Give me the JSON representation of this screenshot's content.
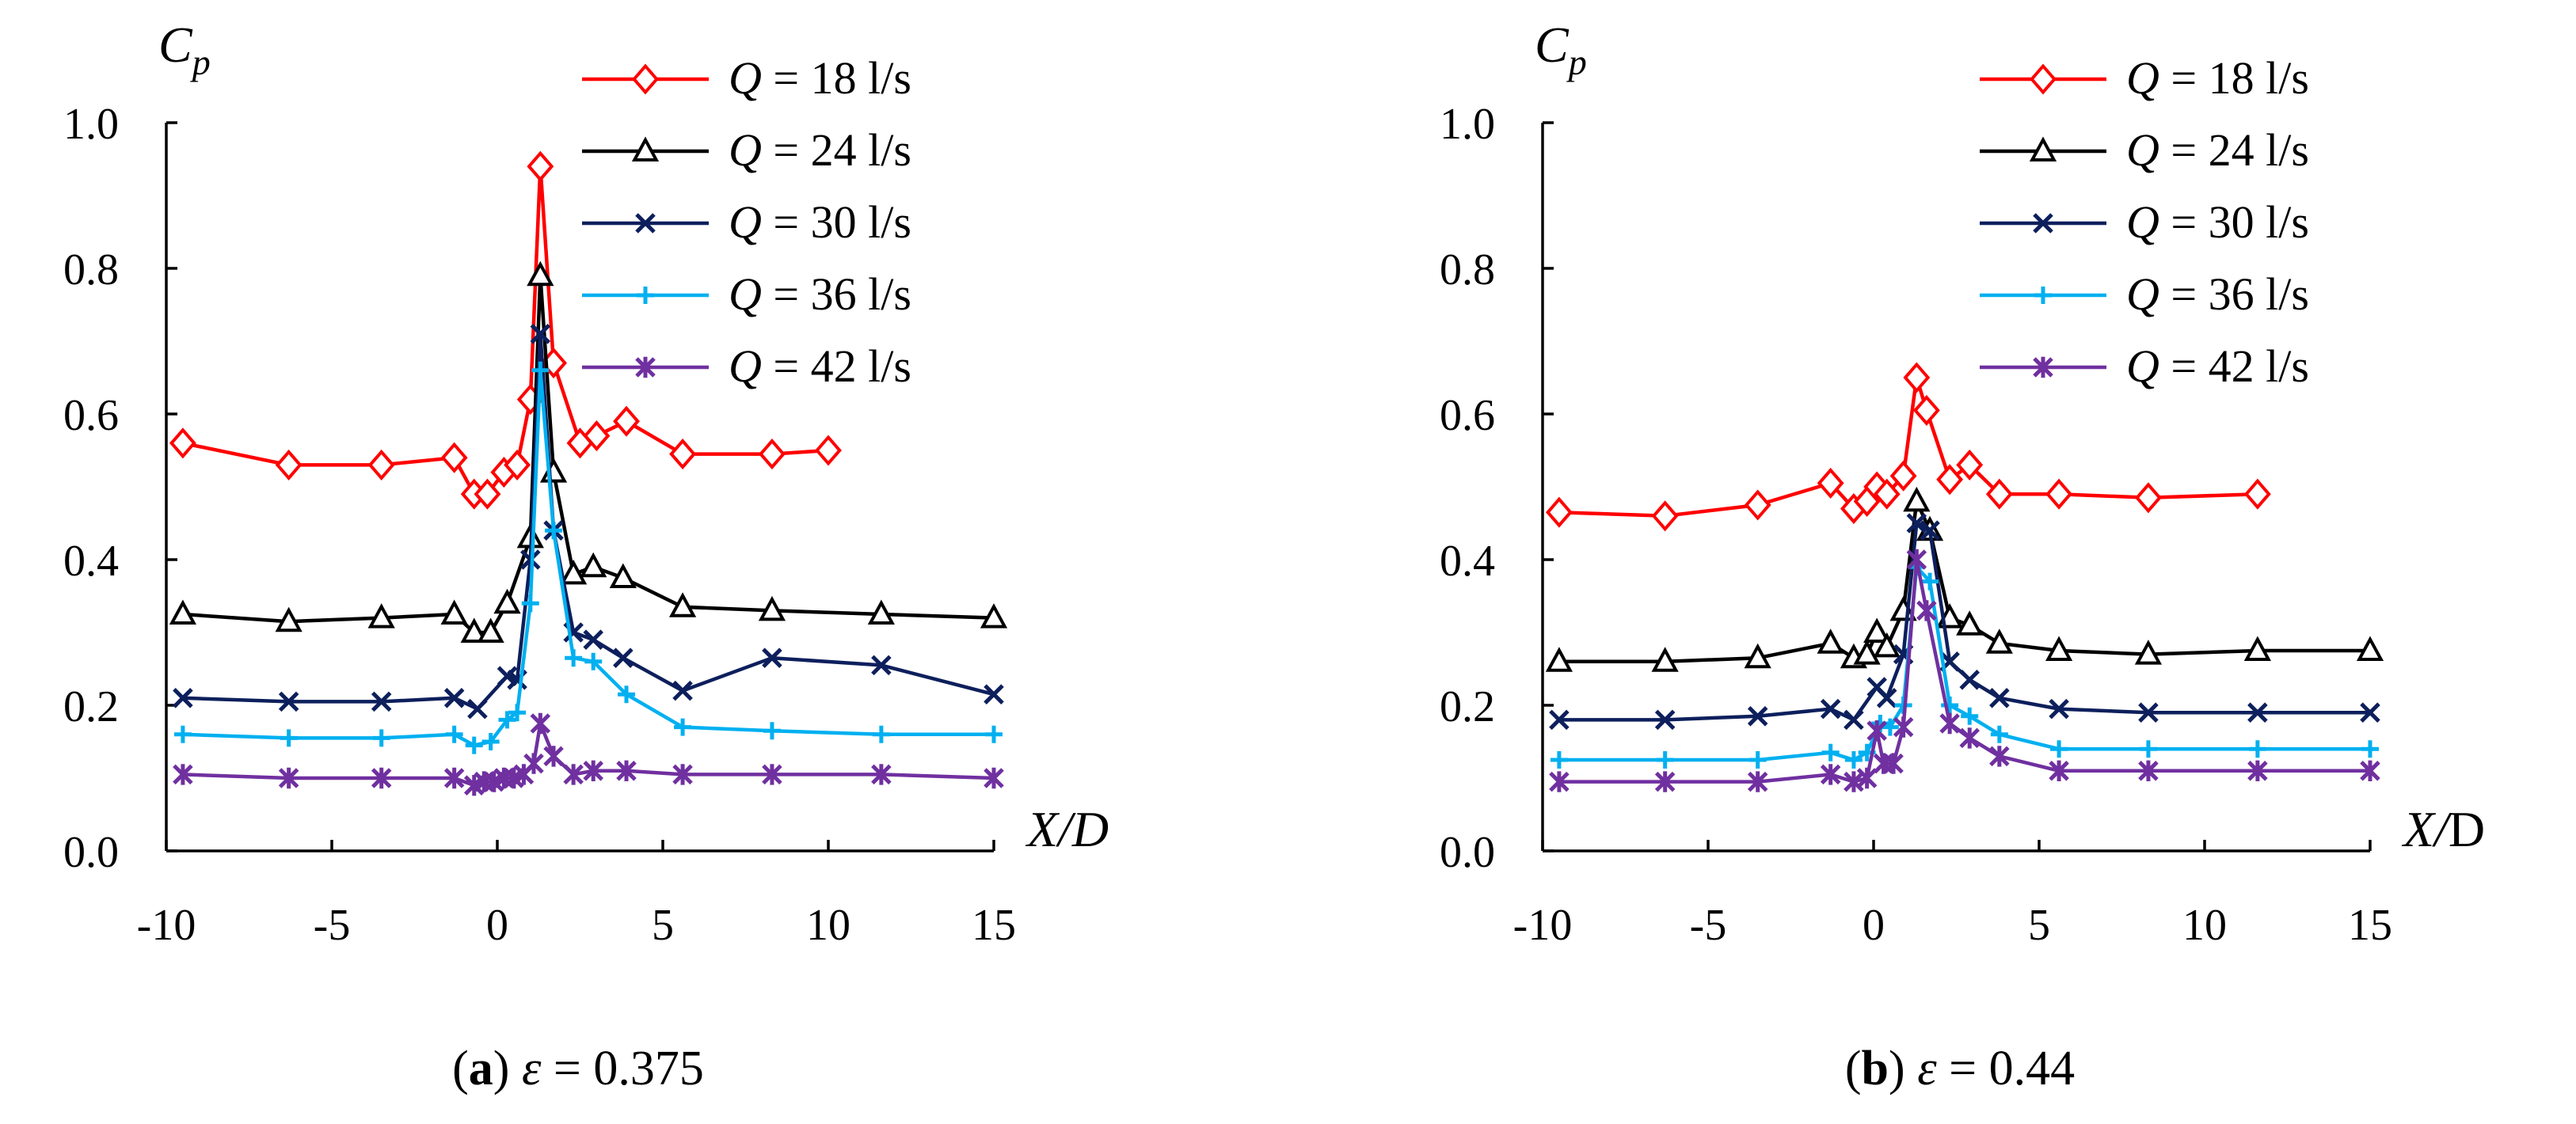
{
  "chart_data": [
    {
      "type": "line",
      "panel": "a",
      "caption": {
        "letter": "a",
        "epsilon_value": "0.375"
      },
      "xlabel": "X/D",
      "ylabel": "Cp",
      "xlim": [
        -10,
        15
      ],
      "ylim": [
        0,
        1.0
      ],
      "xticks": [
        -10,
        -5,
        0,
        5,
        10,
        15
      ],
      "yticks": [
        "0.0",
        "0.2",
        "0.4",
        "0.6",
        "0.8",
        "1.0"
      ],
      "legend_position": "top-right",
      "series": [
        {
          "name": "Q = 18 l/s",
          "q": "18",
          "color": "#ff0000",
          "marker": "diamond",
          "x": [
            -9.5,
            -6.3,
            -3.5,
            -1.3,
            -0.7,
            -0.3,
            0.2,
            0.6,
            1.0,
            1.3,
            1.7,
            2.5,
            3.0,
            3.9,
            5.6,
            8.3,
            10.0
          ],
          "y": [
            0.56,
            0.53,
            0.53,
            0.54,
            0.49,
            0.49,
            0.52,
            0.53,
            0.62,
            0.94,
            0.67,
            0.56,
            0.57,
            0.59,
            0.545,
            0.545,
            0.55
          ]
        },
        {
          "name": "Q = 24 l/s",
          "q": "24",
          "color": "#000000",
          "marker": "triangle",
          "x": [
            -9.5,
            -6.3,
            -3.5,
            -1.3,
            -0.7,
            -0.2,
            0.3,
            1.0,
            1.3,
            1.7,
            2.3,
            2.9,
            3.8,
            5.6,
            8.3,
            11.6,
            15.0
          ],
          "y": [
            0.325,
            0.315,
            0.32,
            0.325,
            0.3,
            0.3,
            0.34,
            0.43,
            0.79,
            0.52,
            0.38,
            0.39,
            0.375,
            0.335,
            0.33,
            0.325,
            0.32
          ]
        },
        {
          "name": "Q = 30 l/s",
          "q": "30",
          "color": "#0d1f5c",
          "marker": "x",
          "x": [
            -9.5,
            -6.3,
            -3.5,
            -1.3,
            -0.6,
            0.3,
            0.6,
            1.0,
            1.3,
            1.7,
            2.3,
            2.9,
            3.8,
            5.6,
            8.3,
            11.6,
            15.0
          ],
          "y": [
            0.21,
            0.205,
            0.205,
            0.21,
            0.195,
            0.24,
            0.235,
            0.4,
            0.71,
            0.44,
            0.3,
            0.29,
            0.265,
            0.22,
            0.265,
            0.255,
            0.215
          ]
        },
        {
          "name": "Q = 36 l/s",
          "q": "36",
          "color": "#00b0f0",
          "marker": "plus",
          "x": [
            -9.5,
            -6.3,
            -3.5,
            -1.3,
            -0.7,
            -0.2,
            0.3,
            0.6,
            1.0,
            1.3,
            1.7,
            2.3,
            2.9,
            3.9,
            5.6,
            8.3,
            11.6,
            15.0
          ],
          "y": [
            0.16,
            0.155,
            0.155,
            0.16,
            0.145,
            0.15,
            0.18,
            0.19,
            0.34,
            0.66,
            0.44,
            0.265,
            0.26,
            0.215,
            0.17,
            0.165,
            0.16,
            0.16
          ]
        },
        {
          "name": "Q = 42 l/s",
          "q": "42",
          "color": "#7030a0",
          "marker": "asterisk",
          "x": [
            -9.5,
            -6.3,
            -3.5,
            -1.3,
            -0.7,
            -0.4,
            -0.1,
            0.2,
            0.5,
            0.8,
            1.1,
            1.3,
            1.7,
            2.3,
            2.9,
            3.9,
            5.6,
            8.3,
            11.6,
            15.0
          ],
          "y": [
            0.105,
            0.1,
            0.1,
            0.1,
            0.09,
            0.095,
            0.095,
            0.1,
            0.1,
            0.105,
            0.12,
            0.175,
            0.13,
            0.105,
            0.11,
            0.11,
            0.105,
            0.105,
            0.105,
            0.1
          ]
        }
      ]
    },
    {
      "type": "line",
      "panel": "b",
      "caption": {
        "letter": "b",
        "epsilon_value": "0.44"
      },
      "xlabel": "X/D",
      "ylabel": "Cp",
      "xlim": [
        -10,
        15
      ],
      "ylim": [
        0,
        1.0
      ],
      "xticks": [
        -10,
        -5,
        0,
        5,
        10,
        15
      ],
      "yticks": [
        "0.0",
        "0.2",
        "0.4",
        "0.6",
        "0.8",
        "1.0"
      ],
      "legend_position": "top-right",
      "series": [
        {
          "name": "Q = 18 l/s",
          "q": "18",
          "color": "#ff0000",
          "marker": "diamond",
          "x": [
            -9.5,
            -6.3,
            -3.5,
            -1.3,
            -0.6,
            -0.2,
            0.1,
            0.4,
            0.9,
            1.3,
            1.6,
            2.3,
            2.9,
            3.8,
            5.6,
            8.3,
            11.6
          ],
          "y": [
            0.465,
            0.46,
            0.475,
            0.505,
            0.47,
            0.48,
            0.5,
            0.49,
            0.515,
            0.65,
            0.605,
            0.51,
            0.53,
            0.49,
            0.49,
            0.485,
            0.49
          ]
        },
        {
          "name": "Q = 24 l/s",
          "q": "24",
          "color": "#000000",
          "marker": "triangle",
          "x": [
            -9.5,
            -6.3,
            -3.5,
            -1.3,
            -0.6,
            -0.2,
            0.1,
            0.4,
            0.9,
            1.3,
            1.7,
            2.3,
            2.9,
            3.8,
            5.6,
            8.3,
            11.6,
            15.0
          ],
          "y": [
            0.26,
            0.26,
            0.265,
            0.285,
            0.265,
            0.27,
            0.3,
            0.28,
            0.33,
            0.48,
            0.44,
            0.32,
            0.31,
            0.285,
            0.275,
            0.27,
            0.275,
            0.275
          ]
        },
        {
          "name": "Q = 30 l/s",
          "q": "30",
          "color": "#0d1f5c",
          "marker": "x",
          "x": [
            -9.5,
            -6.3,
            -3.5,
            -1.3,
            -0.6,
            0.1,
            0.4,
            0.9,
            1.3,
            1.7,
            2.3,
            2.9,
            3.8,
            5.6,
            8.3,
            11.6,
            15.0
          ],
          "y": [
            0.18,
            0.18,
            0.185,
            0.195,
            0.18,
            0.225,
            0.21,
            0.27,
            0.45,
            0.44,
            0.26,
            0.235,
            0.21,
            0.195,
            0.19,
            0.19,
            0.19
          ]
        },
        {
          "name": "Q = 36 l/s",
          "q": "36",
          "color": "#00b0f0",
          "marker": "plus",
          "x": [
            -9.5,
            -6.3,
            -3.5,
            -1.3,
            -0.6,
            -0.2,
            0.2,
            0.5,
            0.9,
            1.3,
            1.7,
            2.3,
            2.9,
            3.8,
            5.6,
            8.3,
            11.6,
            15.0
          ],
          "y": [
            0.125,
            0.125,
            0.125,
            0.135,
            0.125,
            0.135,
            0.175,
            0.17,
            0.2,
            0.39,
            0.37,
            0.2,
            0.185,
            0.16,
            0.14,
            0.14,
            0.14,
            0.14
          ]
        },
        {
          "name": "Q = 42 l/s",
          "q": "42",
          "color": "#7030a0",
          "marker": "asterisk",
          "x": [
            -9.5,
            -6.3,
            -3.5,
            -1.3,
            -0.6,
            -0.2,
            0.1,
            0.3,
            0.6,
            0.9,
            1.3,
            1.6,
            2.3,
            2.9,
            3.8,
            5.6,
            8.3,
            11.6,
            15.0
          ],
          "y": [
            0.095,
            0.095,
            0.095,
            0.105,
            0.095,
            0.1,
            0.165,
            0.12,
            0.12,
            0.17,
            0.4,
            0.33,
            0.175,
            0.155,
            0.13,
            0.11,
            0.11,
            0.11,
            0.11
          ]
        }
      ]
    }
  ]
}
